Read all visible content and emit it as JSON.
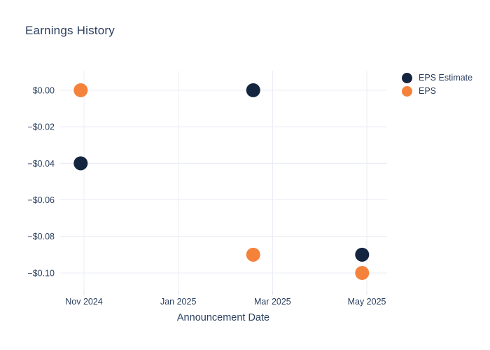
{
  "chart_data": {
    "type": "scatter",
    "title": "Earnings History",
    "xlabel": "Announcement Date",
    "ylabel": "",
    "grid": true,
    "legend_position": "outside-top-right",
    "marker_radius": 10,
    "x_axis": {
      "unit": "months since Nov 1 2024",
      "tick_values": [
        0,
        2,
        4,
        6
      ],
      "tick_labels": [
        "Nov 2024",
        "Jan 2025",
        "Mar 2025",
        "May 2025"
      ],
      "range": [
        -0.52,
        6.43
      ]
    },
    "y_axis": {
      "tick_values": [
        0,
        -0.02,
        -0.04,
        -0.06,
        -0.08,
        -0.1
      ],
      "tick_labels": [
        "$0.00",
        "−$0.02",
        "−$0.04",
        "−$0.06",
        "−$0.08",
        "−$0.10"
      ],
      "range": [
        -0.1096,
        0.0107
      ]
    },
    "series": [
      {
        "name": "EPS Estimate",
        "color": "#142540",
        "points": [
          {
            "x": -0.07,
            "y": -0.04,
            "date_est": "late Oct 2024"
          },
          {
            "x": 3.59,
            "y": 0.0,
            "date_est": "mid-late Feb 2025"
          },
          {
            "x": 5.9,
            "y": -0.09,
            "date_est": "late Apr 2025"
          }
        ]
      },
      {
        "name": "EPS",
        "color": "#f5823b",
        "points": [
          {
            "x": -0.07,
            "y": 0.0,
            "date_est": "late Oct 2024"
          },
          {
            "x": 3.59,
            "y": -0.09,
            "date_est": "mid-late Feb 2025"
          },
          {
            "x": 5.9,
            "y": -0.1,
            "date_est": "late Apr 2025"
          }
        ]
      }
    ],
    "colors": {
      "text": "#2a3f5f",
      "grid": "#e9ecf4",
      "tick": "#dde1ec",
      "background": "#ffffff"
    }
  }
}
